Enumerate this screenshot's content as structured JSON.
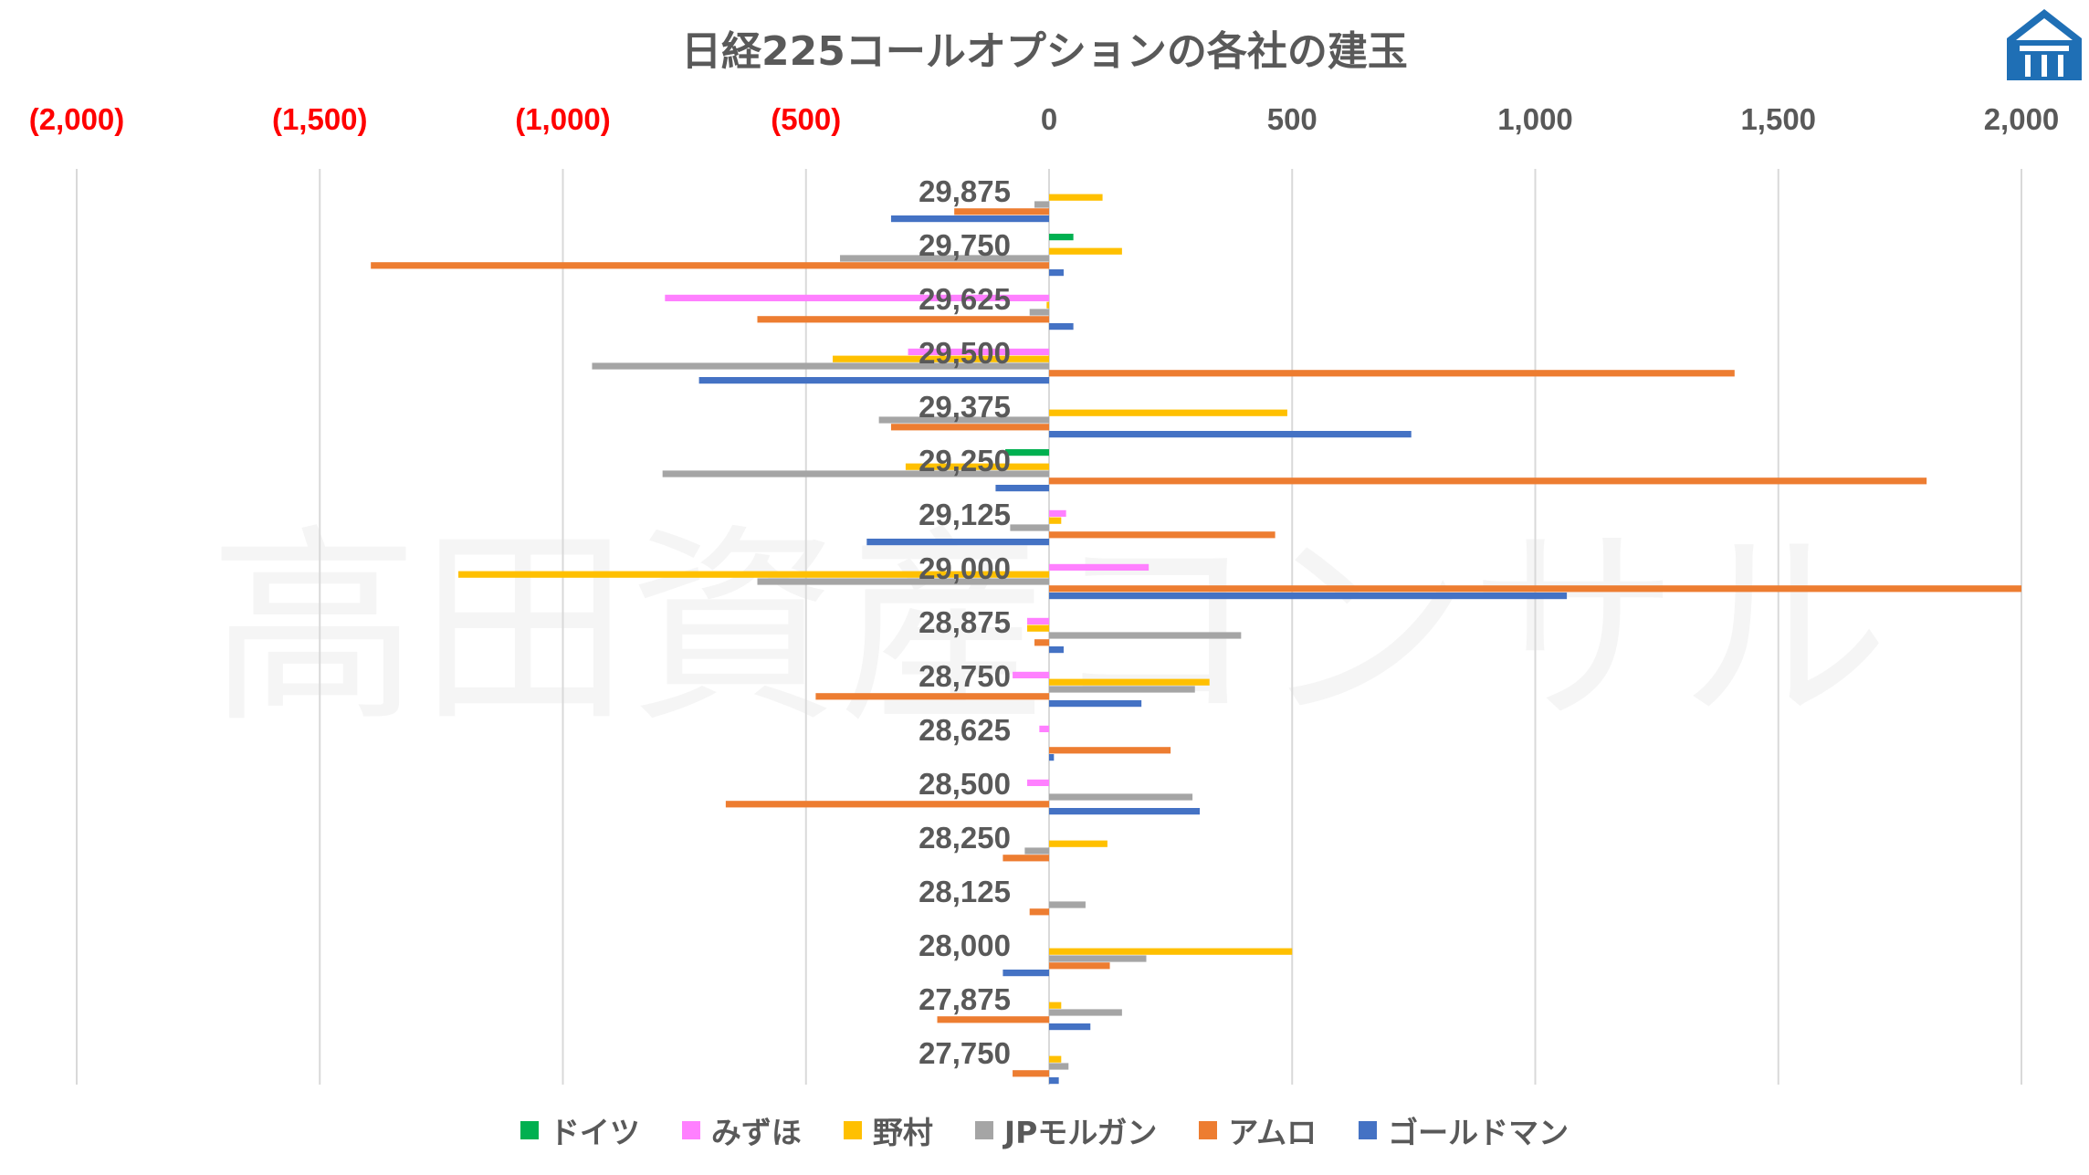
{
  "chart_data": {
    "type": "bar",
    "orientation": "horizontal",
    "title": "日経225コールオプションの各社の建玉",
    "watermark": "高田資産コンサル",
    "categories": [
      "29,875",
      "29,750",
      "29,625",
      "29,500",
      "29,375",
      "29,250",
      "29,125",
      "29,000",
      "28,875",
      "28,750",
      "28,625",
      "28,500",
      "28,250",
      "28,125",
      "28,000",
      "27,875",
      "27,750"
    ],
    "x_ticks": [
      "(2,000)",
      "(1,500)",
      "(1,000)",
      "(500)",
      "0",
      "500",
      "1,000",
      "1,500",
      "2,000"
    ],
    "x_tick_values": [
      -2000,
      -1500,
      -1000,
      -500,
      0,
      500,
      1000,
      1500,
      2000
    ],
    "xlim": [
      -2000,
      2000
    ],
    "grid": true,
    "legend_position": "bottom",
    "negative_tick_color": "#ff0000",
    "series": [
      {
        "name": "ドイツ",
        "color": "#00b050",
        "values": [
          0,
          50,
          0,
          0,
          0,
          -90,
          0,
          0,
          0,
          0,
          0,
          0,
          0,
          0,
          0,
          0,
          0
        ]
      },
      {
        "name": "みずほ",
        "color": "#ff80ff",
        "values": [
          0,
          0,
          -790,
          -290,
          0,
          0,
          35,
          205,
          -45,
          -75,
          -20,
          -45,
          0,
          0,
          0,
          0,
          0
        ]
      },
      {
        "name": "野村",
        "color": "#ffc000",
        "values": [
          110,
          150,
          -5,
          -445,
          490,
          -295,
          25,
          -1215,
          -45,
          330,
          0,
          0,
          120,
          0,
          500,
          25,
          25
        ]
      },
      {
        "name": "JPモルガン",
        "color": "#a5a5a5",
        "values": [
          -30,
          -430,
          -40,
          -940,
          -350,
          -795,
          -80,
          -600,
          395,
          300,
          0,
          295,
          -50,
          75,
          200,
          150,
          40
        ]
      },
      {
        "name": "アムロ",
        "color": "#ed7d31",
        "values": [
          -195,
          -1395,
          -600,
          1410,
          -325,
          1805,
          465,
          2000,
          -30,
          -480,
          250,
          -665,
          -95,
          -40,
          125,
          -230,
          -75
        ]
      },
      {
        "name": "ゴールドマン",
        "color": "#4472c4",
        "values": [
          -325,
          30,
          50,
          -720,
          745,
          -110,
          -375,
          1065,
          30,
          190,
          10,
          310,
          0,
          0,
          -95,
          85,
          20
        ]
      }
    ]
  }
}
